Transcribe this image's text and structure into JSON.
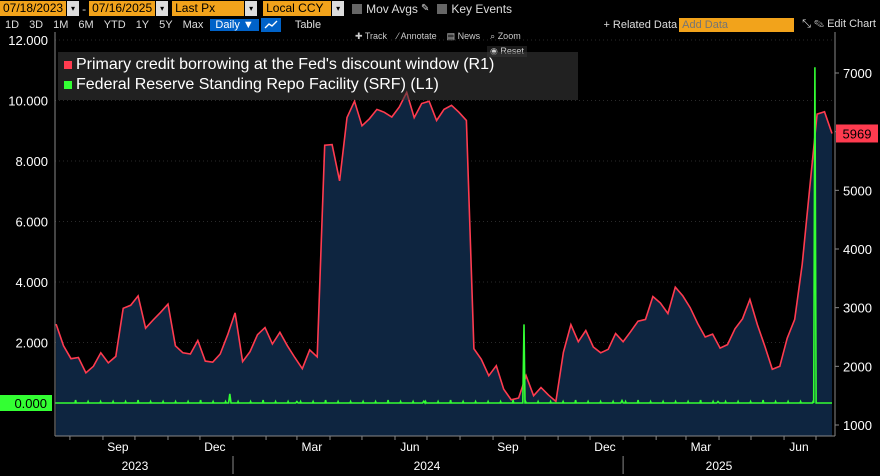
{
  "toolbar": {
    "start_date": "07/18/2023",
    "end_date": "07/16/2025",
    "field": "Last Px",
    "currency": "Local CCY",
    "mov_avgs": "Mov Avgs",
    "key_events": "Key Events",
    "ranges": [
      "1D",
      "3D",
      "1M",
      "6M",
      "YTD",
      "1Y",
      "5Y",
      "Max"
    ],
    "frequency": "Daily",
    "table": "Table",
    "related_data": "Related Data",
    "add_data_placeholder": "Add Data",
    "edit_chart": "Edit Chart"
  },
  "chart_tools": {
    "track": "Track",
    "annotate": "Annotate",
    "news": "News",
    "zoom": "Zoom",
    "reset": "Reset"
  },
  "colors": {
    "primary_credit": "#ff3b4f",
    "srf": "#33ff33",
    "area_fill": "#0e2540",
    "background": "#000000"
  },
  "chart_data": {
    "type": "line",
    "legend": [
      {
        "name": "Primary credit borrowing at the Fed's discount window (R1)",
        "color": "#ff3b4f"
      },
      {
        "name": "Federal Reserve Standing Repo Facility (SRF) (L1)",
        "color": "#33ff33"
      }
    ],
    "left_axis": {
      "ticks": [
        "12.000",
        "10.000",
        "8.000",
        "6.000",
        "4.000",
        "2.000",
        "0.000"
      ],
      "values": [
        12000,
        10000,
        8000,
        6000,
        4000,
        2000,
        0
      ],
      "ylim": [
        -1000,
        12300
      ]
    },
    "right_axis": {
      "ticks": [
        "7000",
        "6000",
        "5000",
        "4000",
        "3000",
        "2000",
        "1000"
      ],
      "values": [
        7000,
        6000,
        5000,
        4000,
        3000,
        2000,
        1000
      ],
      "ylim": [
        900,
        7660
      ]
    },
    "x_months": [
      "Sep",
      "Dec",
      "Mar",
      "Jun",
      "Sep",
      "Dec",
      "Mar",
      "Jun"
    ],
    "x_years": [
      "2023",
      "2024",
      "2025"
    ],
    "last_value_label": "5969",
    "last_value_srf": "0.000",
    "time_range": [
      "2023-07-18",
      "2025-07-16"
    ],
    "series": [
      {
        "name": "Primary credit borrowing at the Fed's discount window (R1)",
        "axis": "right",
        "points": [
          [
            "2023-07-19",
            2720
          ],
          [
            "2023-07-26",
            2350
          ],
          [
            "2023-08-02",
            2130
          ],
          [
            "2023-08-09",
            2150
          ],
          [
            "2023-08-16",
            1890
          ],
          [
            "2023-08-23",
            2000
          ],
          [
            "2023-08-30",
            2230
          ],
          [
            "2023-09-06",
            2060
          ],
          [
            "2023-09-13",
            2170
          ],
          [
            "2023-09-20",
            2990
          ],
          [
            "2023-09-27",
            3040
          ],
          [
            "2023-10-04",
            3200
          ],
          [
            "2023-10-11",
            2650
          ],
          [
            "2023-10-18",
            2790
          ],
          [
            "2023-10-25",
            2920
          ],
          [
            "2023-11-01",
            3060
          ],
          [
            "2023-11-08",
            2350
          ],
          [
            "2023-11-15",
            2230
          ],
          [
            "2023-11-22",
            2210
          ],
          [
            "2023-11-29",
            2440
          ],
          [
            "2023-12-06",
            2090
          ],
          [
            "2023-12-13",
            2070
          ],
          [
            "2023-12-20",
            2210
          ],
          [
            "2023-12-27",
            2540
          ],
          [
            "2024-01-03",
            2910
          ],
          [
            "2024-01-10",
            2080
          ],
          [
            "2024-01-17",
            2250
          ],
          [
            "2024-01-24",
            2540
          ],
          [
            "2024-01-31",
            2660
          ],
          [
            "2024-02-07",
            2380
          ],
          [
            "2024-02-14",
            2580
          ],
          [
            "2024-02-21",
            2350
          ],
          [
            "2024-02-28",
            2150
          ],
          [
            "2024-03-06",
            1960
          ],
          [
            "2024-03-13",
            2280
          ],
          [
            "2024-03-20",
            2160
          ],
          [
            "2024-03-27",
            5770
          ],
          [
            "2024-04-03",
            5780
          ],
          [
            "2024-04-10",
            5160
          ],
          [
            "2024-04-17",
            6240
          ],
          [
            "2024-04-24",
            6520
          ],
          [
            "2024-05-01",
            6100
          ],
          [
            "2024-05-08",
            6220
          ],
          [
            "2024-05-15",
            6380
          ],
          [
            "2024-05-22",
            6330
          ],
          [
            "2024-05-29",
            6250
          ],
          [
            "2024-06-05",
            6420
          ],
          [
            "2024-06-12",
            6670
          ],
          [
            "2024-06-19",
            6240
          ],
          [
            "2024-06-26",
            6480
          ],
          [
            "2024-07-03",
            6520
          ],
          [
            "2024-07-10",
            6190
          ],
          [
            "2024-07-17",
            6380
          ],
          [
            "2024-07-24",
            6450
          ],
          [
            "2024-07-31",
            6330
          ],
          [
            "2024-08-07",
            6190
          ],
          [
            "2024-08-14",
            2300
          ],
          [
            "2024-08-21",
            2120
          ],
          [
            "2024-08-28",
            1840
          ],
          [
            "2024-09-04",
            2010
          ],
          [
            "2024-09-11",
            1610
          ],
          [
            "2024-09-18",
            1430
          ],
          [
            "2024-09-25",
            1460
          ],
          [
            "2024-10-02",
            1840
          ],
          [
            "2024-10-09",
            1500
          ],
          [
            "2024-10-16",
            1640
          ],
          [
            "2024-10-23",
            1510
          ],
          [
            "2024-10-30",
            1400
          ],
          [
            "2024-11-06",
            2240
          ],
          [
            "2024-11-13",
            2710
          ],
          [
            "2024-11-20",
            2420
          ],
          [
            "2024-11-27",
            2610
          ],
          [
            "2024-12-04",
            2330
          ],
          [
            "2024-12-11",
            2230
          ],
          [
            "2024-12-18",
            2290
          ],
          [
            "2024-12-25",
            2560
          ],
          [
            "2025-01-01",
            2420
          ],
          [
            "2025-01-08",
            2590
          ],
          [
            "2025-01-15",
            2770
          ],
          [
            "2025-01-22",
            2800
          ],
          [
            "2025-01-29",
            3190
          ],
          [
            "2025-02-05",
            3080
          ],
          [
            "2025-02-12",
            2900
          ],
          [
            "2025-02-19",
            3350
          ],
          [
            "2025-02-26",
            3200
          ],
          [
            "2025-03-05",
            3000
          ],
          [
            "2025-03-12",
            2730
          ],
          [
            "2025-03-19",
            2500
          ],
          [
            "2025-03-26",
            2550
          ],
          [
            "2025-04-02",
            2310
          ],
          [
            "2025-04-09",
            2370
          ],
          [
            "2025-04-16",
            2640
          ],
          [
            "2025-04-23",
            2810
          ],
          [
            "2025-04-30",
            3140
          ],
          [
            "2025-05-07",
            2710
          ],
          [
            "2025-05-14",
            2340
          ],
          [
            "2025-05-21",
            1950
          ],
          [
            "2025-05-28",
            2000
          ],
          [
            "2025-06-04",
            2480
          ],
          [
            "2025-06-11",
            2800
          ],
          [
            "2025-06-18",
            3740
          ],
          [
            "2025-06-25",
            5020
          ],
          [
            "2025-07-02",
            6300
          ],
          [
            "2025-07-09",
            6340
          ],
          [
            "2025-07-16",
            5969
          ]
        ]
      },
      {
        "name": "Federal Reserve Standing Repo Facility (SRF) (L1)",
        "axis": "left",
        "baseline": 0,
        "spikes": [
          [
            "2023-12-29",
            300
          ],
          [
            "2024-03-01",
            50
          ],
          [
            "2024-06-28",
            60
          ],
          [
            "2024-09-30",
            2600
          ],
          [
            "2024-12-31",
            80
          ],
          [
            "2025-03-31",
            50
          ],
          [
            "2025-06-30",
            11100
          ]
        ]
      }
    ]
  }
}
